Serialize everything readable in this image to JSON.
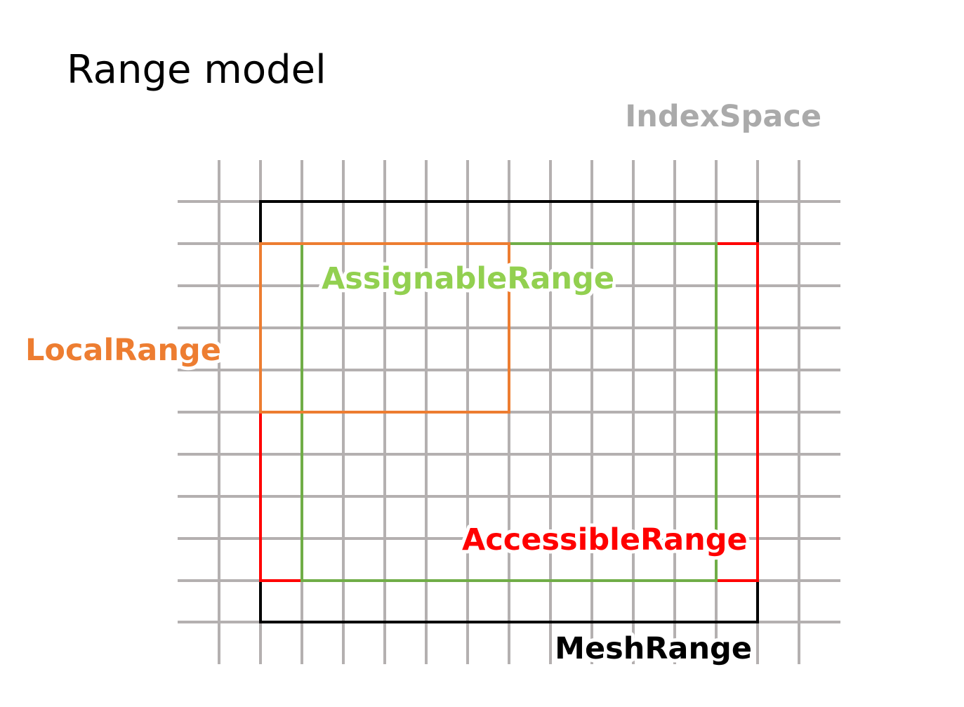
{
  "title": "Range model",
  "labels": {
    "index_space": "IndexSpace",
    "assignable_range": "AssignableRange",
    "local_range": "LocalRange",
    "accessible_range": "AccessibleRange",
    "mesh_range": "MeshRange"
  },
  "colors": {
    "grid": "#b4b0b0",
    "mesh_range": "#000000",
    "local_range": "#ed7d31",
    "assignable_range": "#70ad47",
    "accessible_range": "#ff0000",
    "index_space_label": "#aaaaaa",
    "assignable_label": "#92d050",
    "local_label": "#ed7d31",
    "accessible_label": "#ff0000",
    "mesh_label": "#000000"
  }
}
